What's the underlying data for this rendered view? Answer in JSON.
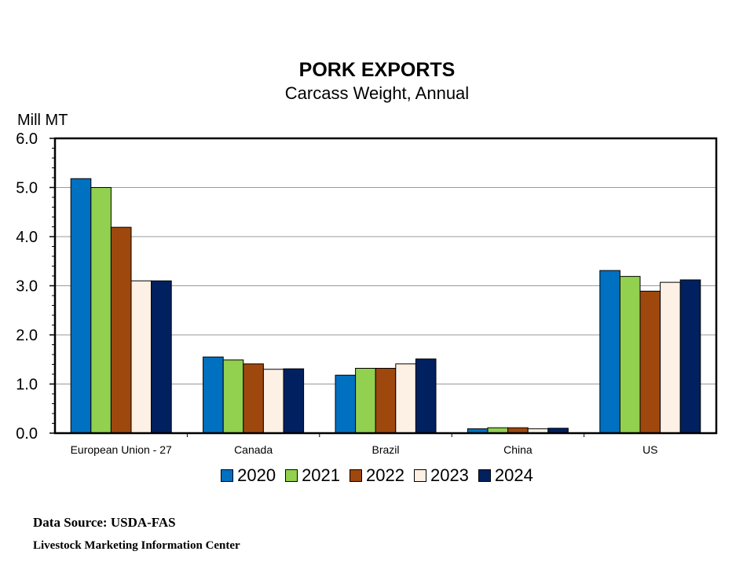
{
  "chart_data": {
    "type": "bar",
    "title": "PORK EXPORTS",
    "subtitle": "Carcass Weight, Annual",
    "ylabel": "Mill MT",
    "xlabel": "",
    "ylim": [
      0,
      6
    ],
    "yticks": [
      "0.0",
      "1.0",
      "2.0",
      "3.0",
      "4.0",
      "5.0",
      "6.0"
    ],
    "grid": true,
    "legend_position": "bottom",
    "categories": [
      "European Union - 27",
      "Canada",
      "Brazil",
      "China",
      "US"
    ],
    "series": [
      {
        "name": "2020",
        "color": "#0070C0",
        "values": [
          5.18,
          1.55,
          1.18,
          0.09,
          3.31
        ]
      },
      {
        "name": "2021",
        "color": "#92D050",
        "values": [
          5.0,
          1.49,
          1.32,
          0.11,
          3.19
        ]
      },
      {
        "name": "2022",
        "color": "#9E480E",
        "values": [
          4.19,
          1.41,
          1.32,
          0.11,
          2.89
        ]
      },
      {
        "name": "2023",
        "color": "#FDF0E4",
        "values": [
          3.1,
          1.3,
          1.41,
          0.09,
          3.07
        ]
      },
      {
        "name": "2024",
        "color": "#002060",
        "values": [
          3.1,
          1.31,
          1.51,
          0.1,
          3.12
        ]
      }
    ]
  },
  "footer": {
    "source": "Data Source:  USDA-FAS",
    "center": "Livestock Marketing Information  Center"
  }
}
